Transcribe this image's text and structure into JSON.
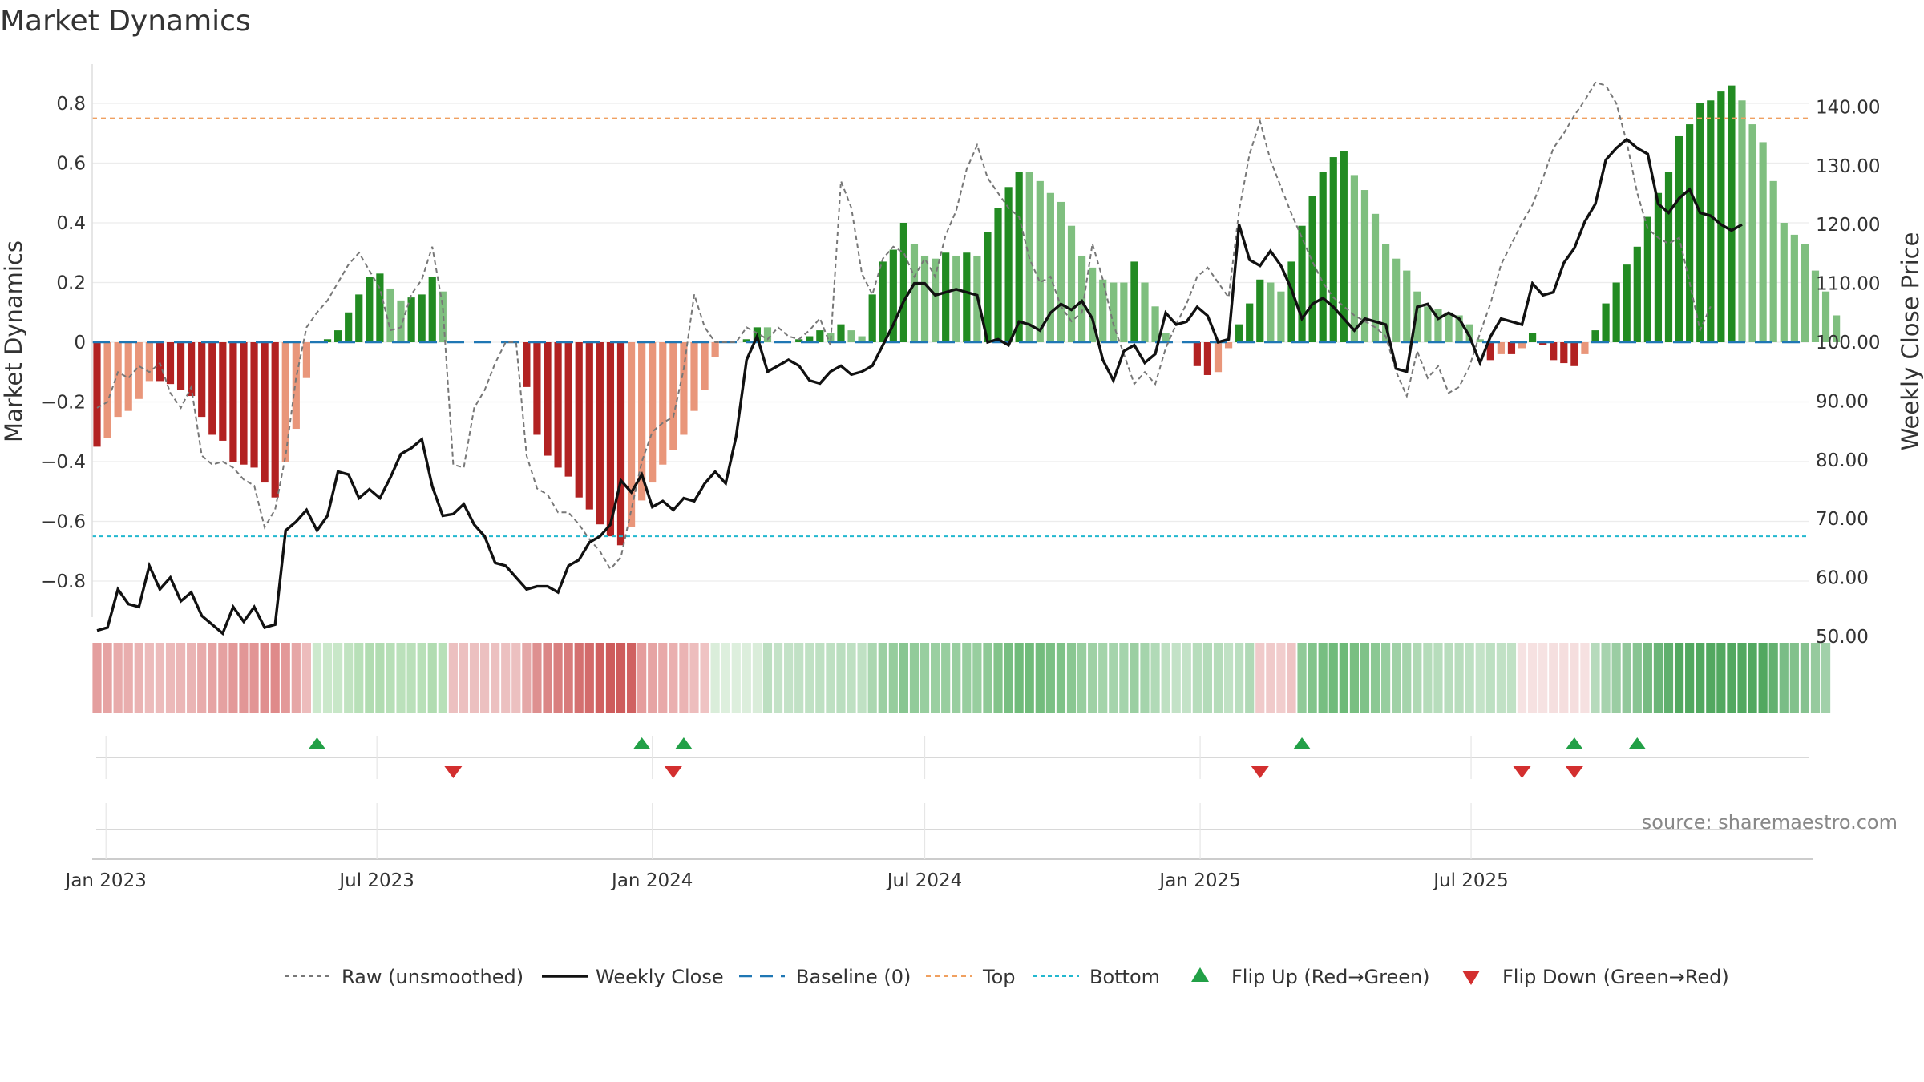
{
  "chart_data": {
    "type": "bar",
    "title": "Market Dynamics",
    "ylabel_left": "Market Dynamics",
    "ylabel_right": "Weekly Close Price",
    "source": "source: sharemaestro.com",
    "ylim_left": [
      -0.9,
      0.93
    ],
    "ylim_right": [
      46.2,
      141.3
    ],
    "y_ticks_left": [
      "0.8",
      "0.6",
      "0.4",
      "0.2",
      "0",
      "−0.2",
      "−0.4",
      "−0.6",
      "−0.8"
    ],
    "y_ticks_right": [
      "140.00",
      "130.00",
      "120.00",
      "110.00",
      "100.00",
      "90.00",
      "80.00",
      "70.00",
      "60.00",
      "50.00"
    ],
    "x_ticks": [
      "Jan 2023",
      "Jul 2023",
      "Jan 2024",
      "Jul 2024",
      "Jan 2025",
      "Jul 2025"
    ],
    "x_start": "2022-12-26",
    "top_threshold": 0.75,
    "bottom_threshold": -0.65,
    "baseline": 0,
    "legend": [
      "Raw (unsmoothed)",
      "Weekly Close",
      "Baseline (0)",
      "Top",
      "Bottom",
      "Flip Up (Red→Green)",
      "Flip Down (Green→Red)"
    ],
    "legend_placement": "bottom",
    "series": [
      {
        "name": "Market Dynamics",
        "values": [
          -0.35,
          -0.32,
          -0.25,
          -0.23,
          -0.19,
          -0.13,
          -0.13,
          -0.14,
          -0.16,
          -0.18,
          -0.25,
          -0.31,
          -0.33,
          -0.4,
          -0.41,
          -0.42,
          -0.47,
          -0.52,
          -0.4,
          -0.29,
          -0.12,
          0.0,
          0.01,
          0.04,
          0.1,
          0.16,
          0.22,
          0.23,
          0.18,
          0.14,
          0.15,
          0.16,
          0.22,
          0.17,
          0.0,
          0.0,
          0.0,
          0.0,
          0.0,
          0.0,
          0.0,
          -0.15,
          -0.31,
          -0.38,
          -0.42,
          -0.45,
          -0.52,
          -0.56,
          -0.61,
          -0.65,
          -0.68,
          -0.62,
          -0.53,
          -0.47,
          -0.41,
          -0.36,
          -0.31,
          -0.23,
          -0.16,
          -0.05,
          0.0,
          0.0,
          0.01,
          0.05,
          0.05,
          0.0,
          0.0,
          0.01,
          0.02,
          0.04,
          0.03,
          0.06,
          0.04,
          0.02,
          0.16,
          0.27,
          0.31,
          0.4,
          0.33,
          0.29,
          0.28,
          0.3,
          0.29,
          0.3,
          0.29,
          0.37,
          0.45,
          0.52,
          0.57,
          0.57,
          0.54,
          0.5,
          0.47,
          0.39,
          0.29,
          0.25,
          0.21,
          0.2,
          0.2,
          0.27,
          0.2,
          0.12,
          0.03,
          0.0,
          0.0,
          -0.08,
          -0.11,
          -0.1,
          -0.02,
          0.06,
          0.13,
          0.21,
          0.2,
          0.17,
          0.27,
          0.39,
          0.49,
          0.57,
          0.62,
          0.64,
          0.56,
          0.51,
          0.43,
          0.33,
          0.28,
          0.24,
          0.17,
          0.12,
          0.11,
          0.1,
          0.09,
          0.06,
          0.01,
          -0.06,
          -0.04,
          -0.04,
          -0.02,
          0.03,
          -0.01,
          -0.06,
          -0.07,
          -0.08,
          -0.04,
          0.04,
          0.13,
          0.2,
          0.26,
          0.32,
          0.42,
          0.5,
          0.57,
          0.69,
          0.73,
          0.8,
          0.81,
          0.84,
          0.86,
          0.81,
          0.73,
          0.67,
          0.54,
          0.4,
          0.36,
          0.33,
          0.24,
          0.17,
          0.09
        ]
      },
      {
        "name": "Raw (unsmoothed)",
        "values": [
          -0.22,
          -0.2,
          -0.1,
          -0.12,
          -0.08,
          -0.1,
          -0.07,
          -0.17,
          -0.22,
          -0.15,
          -0.38,
          -0.41,
          -0.4,
          -0.42,
          -0.46,
          -0.48,
          -0.62,
          -0.56,
          -0.38,
          -0.12,
          0.05,
          0.1,
          0.14,
          0.2,
          0.26,
          0.3,
          0.24,
          0.18,
          0.04,
          0.05,
          0.16,
          0.21,
          0.32,
          0.12,
          -0.41,
          -0.42,
          -0.22,
          -0.16,
          -0.07,
          0.0,
          0.0,
          -0.38,
          -0.49,
          -0.51,
          -0.57,
          -0.57,
          -0.61,
          -0.66,
          -0.7,
          -0.76,
          -0.72,
          -0.56,
          -0.4,
          -0.3,
          -0.27,
          -0.25,
          -0.09,
          0.16,
          0.05,
          0.0,
          0.0,
          0.0,
          0.05,
          0.03,
          0.01,
          0.05,
          0.02,
          0.01,
          0.04,
          0.08,
          -0.01,
          0.54,
          0.45,
          0.23,
          0.16,
          0.28,
          0.32,
          0.3,
          0.22,
          0.28,
          0.22,
          0.36,
          0.44,
          0.58,
          0.66,
          0.55,
          0.5,
          0.45,
          0.42,
          0.28,
          0.2,
          0.22,
          0.12,
          0.07,
          0.1,
          0.33,
          0.21,
          0.06,
          -0.04,
          -0.14,
          -0.1,
          -0.14,
          -0.02,
          0.06,
          0.13,
          0.22,
          0.25,
          0.2,
          0.15,
          0.44,
          0.63,
          0.74,
          0.61,
          0.52,
          0.43,
          0.35,
          0.27,
          0.2,
          0.15,
          0.12,
          0.09,
          0.07,
          0.05,
          0.02,
          -0.1,
          -0.18,
          -0.03,
          -0.12,
          -0.08,
          -0.17,
          -0.15,
          -0.08,
          0.03,
          0.13,
          0.26,
          0.33,
          0.4,
          0.46,
          0.55,
          0.65,
          0.7,
          0.76,
          0.81,
          0.87,
          0.86,
          0.8,
          0.67,
          0.5,
          0.38,
          0.35,
          0.33,
          0.35,
          0.2,
          0.04,
          0.12
        ]
      },
      {
        "name": "Weekly Close",
        "values": [
          51.0,
          51.5,
          58.0,
          55.5,
          55.0,
          62.0,
          58.0,
          60.0,
          56.0,
          57.5,
          53.5,
          52.0,
          50.5,
          55.0,
          52.5,
          55.0,
          51.5,
          52.0,
          68.0,
          69.5,
          71.5,
          68.0,
          70.5,
          78.0,
          77.5,
          73.5,
          75.0,
          73.5,
          77.0,
          81.0,
          82.0,
          83.5,
          75.5,
          70.5,
          70.8,
          72.5,
          69.0,
          67.0,
          62.5,
          62.0,
          60.0,
          58.0,
          58.5,
          58.5,
          57.5,
          62.0,
          63.0,
          66.0,
          67.0,
          69.0,
          76.5,
          74.5,
          77.5,
          72.0,
          73.0,
          71.5,
          73.5,
          73.0,
          76.0,
          78.0,
          76.0,
          84.0,
          97.0,
          101.0,
          95.0,
          96.0,
          97.0,
          96.0,
          93.5,
          93.0,
          95.0,
          96.0,
          94.5,
          95.0,
          96.0,
          99.5,
          103.0,
          107.0,
          110.0,
          110.0,
          108.0,
          108.5,
          109.0,
          108.5,
          108.0,
          100.0,
          100.5,
          99.5,
          103.5,
          103.0,
          102.0,
          105.0,
          106.5,
          105.5,
          107.0,
          104.0,
          97.0,
          93.5,
          98.5,
          99.5,
          96.5,
          98.0,
          105.0,
          103.0,
          103.5,
          106.0,
          104.5,
          100.0,
          100.5,
          120.0,
          114.0,
          113.0,
          115.5,
          113.0,
          109.0,
          104.0,
          106.5,
          107.5,
          106.0,
          104.0,
          102.0,
          104.0,
          103.5,
          103.0,
          95.5,
          95.0,
          106.0,
          106.5,
          104.0,
          105.0,
          104.0,
          101.0,
          96.5,
          101.0,
          104.0,
          103.5,
          103.0,
          110.0,
          108.0,
          108.5,
          113.5,
          116.0,
          120.5,
          123.5,
          131.0,
          133.0,
          134.5,
          133.0,
          132.0,
          123.5,
          122.0,
          124.5,
          126.0,
          122.0,
          121.5,
          120.0,
          119.0,
          120.0
        ]
      }
    ],
    "strip": {
      "segments": [
        {
          "start": 0,
          "end": 21,
          "color": "#d66a6a"
        },
        {
          "start": 21,
          "end": 34,
          "color": "#6fbf6f"
        },
        {
          "start": 34,
          "end": 52,
          "color": "#c94a4a"
        },
        {
          "start": 52,
          "end": 59,
          "color": "#de8585"
        },
        {
          "start": 59,
          "end": 64,
          "color": "#9fd19f"
        },
        {
          "start": 64,
          "end": 111,
          "color": "#53ad5f"
        },
        {
          "start": 111,
          "end": 115,
          "color": "#e29a9a"
        },
        {
          "start": 115,
          "end": 136,
          "color": "#5bb167"
        },
        {
          "start": 136,
          "end": 143,
          "color": "#e7b0b0"
        },
        {
          "start": 143,
          "end": 166,
          "color": "#3f9f4f"
        }
      ]
    },
    "flips_up": [
      21,
      52,
      56,
      115,
      141,
      147
    ],
    "flips_down": [
      34,
      55,
      111,
      136,
      141
    ]
  }
}
